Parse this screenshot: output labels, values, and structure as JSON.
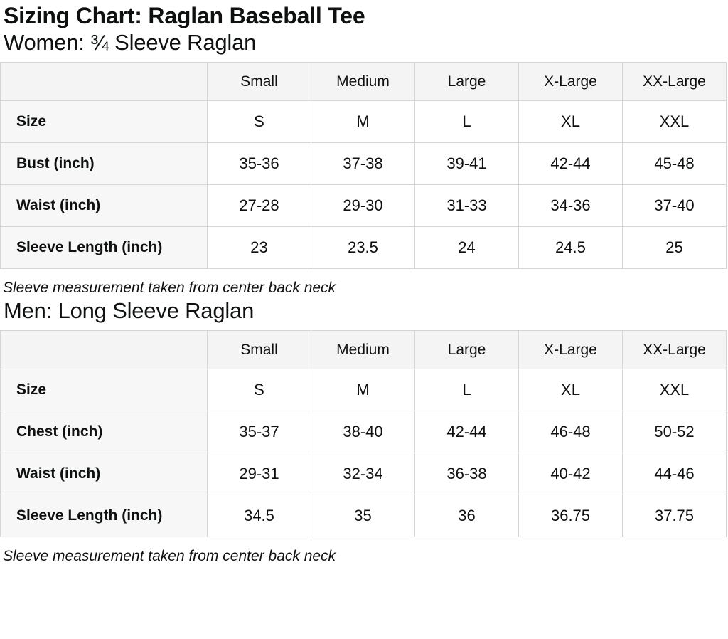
{
  "page": {
    "title": "Sizing Chart: Raglan Baseball Tee"
  },
  "sections": [
    {
      "heading": "Women: ¾ Sleeve Raglan",
      "note": "Sleeve measurement taken from center back neck",
      "table": {
        "column_headers": [
          "",
          "Small",
          "Medium",
          "Large",
          "X-Large",
          "XX-Large"
        ],
        "rows": [
          {
            "label": "Size",
            "values": [
              "S",
              "M",
              "L",
              "XL",
              "XXL"
            ]
          },
          {
            "label": "Bust (inch)",
            "values": [
              "35-36",
              "37-38",
              "39-41",
              "42-44",
              "45-48"
            ]
          },
          {
            "label": "Waist (inch)",
            "values": [
              "27-28",
              "29-30",
              "31-33",
              "34-36",
              "37-40"
            ]
          },
          {
            "label": "Sleeve Length (inch)",
            "values": [
              "23",
              "23.5",
              "24",
              "24.5",
              "25"
            ]
          }
        ]
      }
    },
    {
      "heading": "Men: Long Sleeve Raglan",
      "note": "Sleeve measurement taken from center back neck",
      "table": {
        "column_headers": [
          "",
          "Small",
          "Medium",
          "Large",
          "X-Large",
          "XX-Large"
        ],
        "rows": [
          {
            "label": "Size",
            "values": [
              "S",
              "M",
              "L",
              "XL",
              "XXL"
            ]
          },
          {
            "label": "Chest (inch)",
            "values": [
              "35-37",
              "38-40",
              "42-44",
              "46-48",
              "50-52"
            ]
          },
          {
            "label": "Waist (inch)",
            "values": [
              "29-31",
              "32-34",
              "36-38",
              "40-42",
              "44-46"
            ]
          },
          {
            "label": "Sleeve Length (inch)",
            "values": [
              "34.5",
              "35",
              "36",
              "36.75",
              "37.75"
            ]
          }
        ]
      }
    }
  ],
  "colors": {
    "text": "#0f1111",
    "header_bg": "#f4f4f4",
    "label_bg": "#f7f7f7",
    "cell_bg": "#ffffff",
    "border": "#d5d5d5"
  }
}
